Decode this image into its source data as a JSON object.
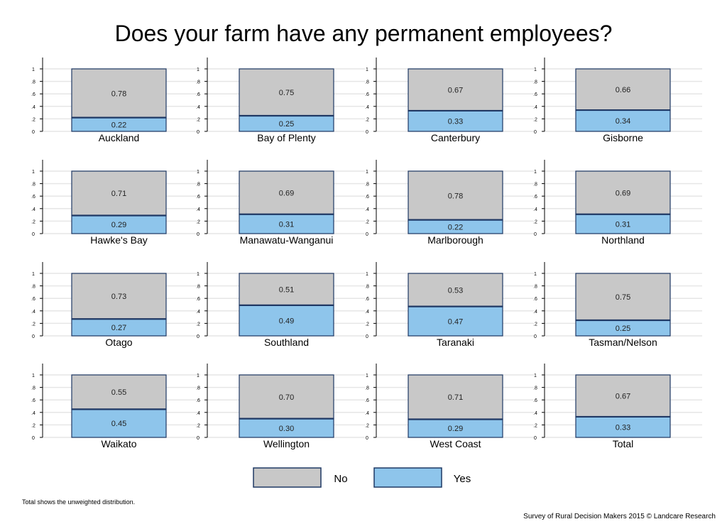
{
  "chart_data": {
    "type": "bar",
    "title": "Does your farm have any permanent employees?",
    "ylim": [
      0,
      1
    ],
    "yticks": [
      "0",
      ".2",
      ".4",
      ".6",
      ".8",
      "1"
    ],
    "grid": true,
    "layout": "small multiples, 4 rows by 4 columns, stacked bars",
    "series_names": [
      "No",
      "Yes"
    ],
    "colors": {
      "No": "#c8c8c8",
      "Yes": "#8ec5eb",
      "bar_outline": "#1f3864",
      "grid": "#e6e6e6"
    },
    "panels": [
      {
        "label": "Auckland",
        "no": 0.78,
        "yes": 0.22,
        "no_label": "0.78",
        "yes_label": "0.22"
      },
      {
        "label": "Bay of Plenty",
        "no": 0.75,
        "yes": 0.25,
        "no_label": "0.75",
        "yes_label": "0.25"
      },
      {
        "label": "Canterbury",
        "no": 0.67,
        "yes": 0.33,
        "no_label": "0.67",
        "yes_label": "0.33"
      },
      {
        "label": "Gisborne",
        "no": 0.66,
        "yes": 0.34,
        "no_label": "0.66",
        "yes_label": "0.34"
      },
      {
        "label": "Hawke's Bay",
        "no": 0.71,
        "yes": 0.29,
        "no_label": "0.71",
        "yes_label": "0.29"
      },
      {
        "label": "Manawatu-Wanganui",
        "no": 0.69,
        "yes": 0.31,
        "no_label": "0.69",
        "yes_label": "0.31"
      },
      {
        "label": "Marlborough",
        "no": 0.78,
        "yes": 0.22,
        "no_label": "0.78",
        "yes_label": "0.22"
      },
      {
        "label": "Northland",
        "no": 0.69,
        "yes": 0.31,
        "no_label": "0.69",
        "yes_label": "0.31"
      },
      {
        "label": "Otago",
        "no": 0.73,
        "yes": 0.27,
        "no_label": "0.73",
        "yes_label": "0.27"
      },
      {
        "label": "Southland",
        "no": 0.51,
        "yes": 0.49,
        "no_label": "0.51",
        "yes_label": "0.49"
      },
      {
        "label": "Taranaki",
        "no": 0.53,
        "yes": 0.47,
        "no_label": "0.53",
        "yes_label": "0.47"
      },
      {
        "label": "Tasman/Nelson",
        "no": 0.75,
        "yes": 0.25,
        "no_label": "0.75",
        "yes_label": "0.25"
      },
      {
        "label": "Waikato",
        "no": 0.55,
        "yes": 0.45,
        "no_label": "0.55",
        "yes_label": "0.45"
      },
      {
        "label": "Wellington",
        "no": 0.7,
        "yes": 0.3,
        "no_label": "0.70",
        "yes_label": "0.30"
      },
      {
        "label": "West Coast",
        "no": 0.71,
        "yes": 0.29,
        "no_label": "0.71",
        "yes_label": "0.29"
      },
      {
        "label": "Total",
        "no": 0.67,
        "yes": 0.33,
        "no_label": "0.67",
        "yes_label": "0.33"
      }
    ],
    "legend": [
      {
        "name": "No",
        "color": "#c8c8c8"
      },
      {
        "name": "Yes",
        "color": "#8ec5eb"
      }
    ],
    "legend_position": "bottom-center",
    "note": "Total shows the unweighted distribution.",
    "source": "Survey of Rural Decision Makers 2015 © Landcare Research"
  }
}
